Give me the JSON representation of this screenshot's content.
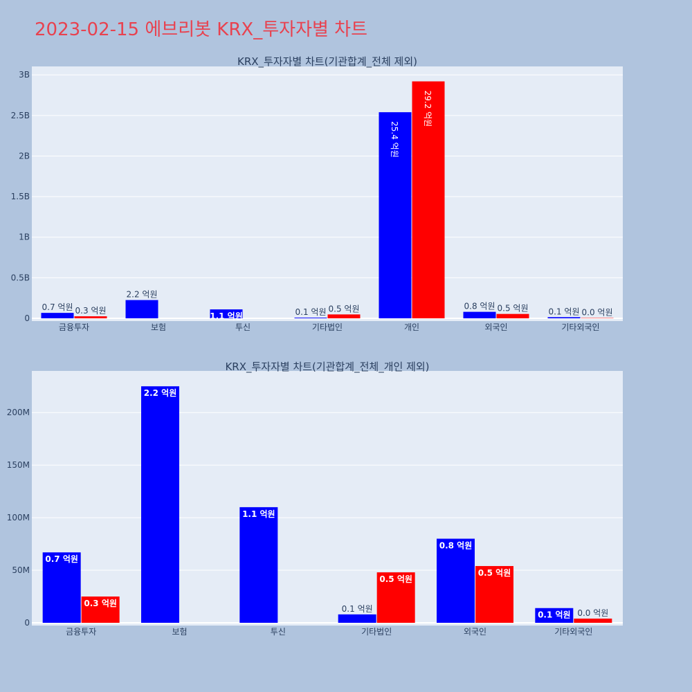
{
  "page_title": "2023-02-15 에브리봇 KRX_투자자별 차트",
  "colors": {
    "buy": "#0000ff",
    "sell": "#ff0000",
    "plot_bg": "#e5ecf6",
    "page_bg": "#b0c4de",
    "title": "#e8424f"
  },
  "chart_data": [
    {
      "type": "bar",
      "title": "KRX_투자자별 차트(기관합계_전체 제외)",
      "categories": [
        "금융투자",
        "보험",
        "투신",
        "기타법인",
        "개인",
        "외국인",
        "기타외국인"
      ],
      "series": [
        {
          "color": "#0000ff",
          "values": [
            67000000,
            225000000,
            110000000,
            8000000,
            2540000000,
            80000000,
            14000000
          ],
          "labels": [
            "0.7 억원",
            "2.2 억원",
            "1.1 억원",
            "0.1 억원",
            "25.4 억원",
            "0.8 억원",
            "0.1 억원"
          ]
        },
        {
          "color": "#ff0000",
          "values": [
            25000000,
            0,
            0,
            48000000,
            2920000000,
            54000000,
            4000000
          ],
          "labels": [
            "0.3 억원",
            "",
            "",
            "0.5 억원",
            "29.2 억원",
            "0.5 억원",
            "0.0 억원"
          ]
        }
      ],
      "yticks": [
        0,
        500000000,
        1000000000,
        1500000000,
        2000000000,
        2500000000,
        3000000000
      ],
      "ytick_labels": [
        "0",
        "0.5B",
        "1B",
        "1.5B",
        "2B",
        "2.5B",
        "3B"
      ],
      "ylim": [
        0,
        3070000000
      ],
      "grid": true
    },
    {
      "type": "bar",
      "title": "KRX_투자자별 차트(기관합계_전체_개인 제외)",
      "categories": [
        "금융투자",
        "보험",
        "투신",
        "기타법인",
        "외국인",
        "기타외국인"
      ],
      "series": [
        {
          "color": "#0000ff",
          "values": [
            67000000,
            225000000,
            110000000,
            8000000,
            80000000,
            14000000
          ],
          "labels": [
            "0.7 억원",
            "2.2 억원",
            "1.1 억원",
            "0.1 억원",
            "0.8 억원",
            "0.1 억원"
          ]
        },
        {
          "color": "#ff0000",
          "values": [
            25000000,
            0,
            0,
            48000000,
            54000000,
            4000000
          ],
          "labels": [
            "0.3 억원",
            "",
            "",
            "0.5 억원",
            "0.5 억원",
            "0.0 억원"
          ]
        }
      ],
      "yticks": [
        0,
        50000000,
        100000000,
        150000000,
        200000000
      ],
      "ytick_labels": [
        "0",
        "50M",
        "100M",
        "150M",
        "200M"
      ],
      "ylim": [
        0,
        237000000
      ],
      "grid": true
    }
  ]
}
